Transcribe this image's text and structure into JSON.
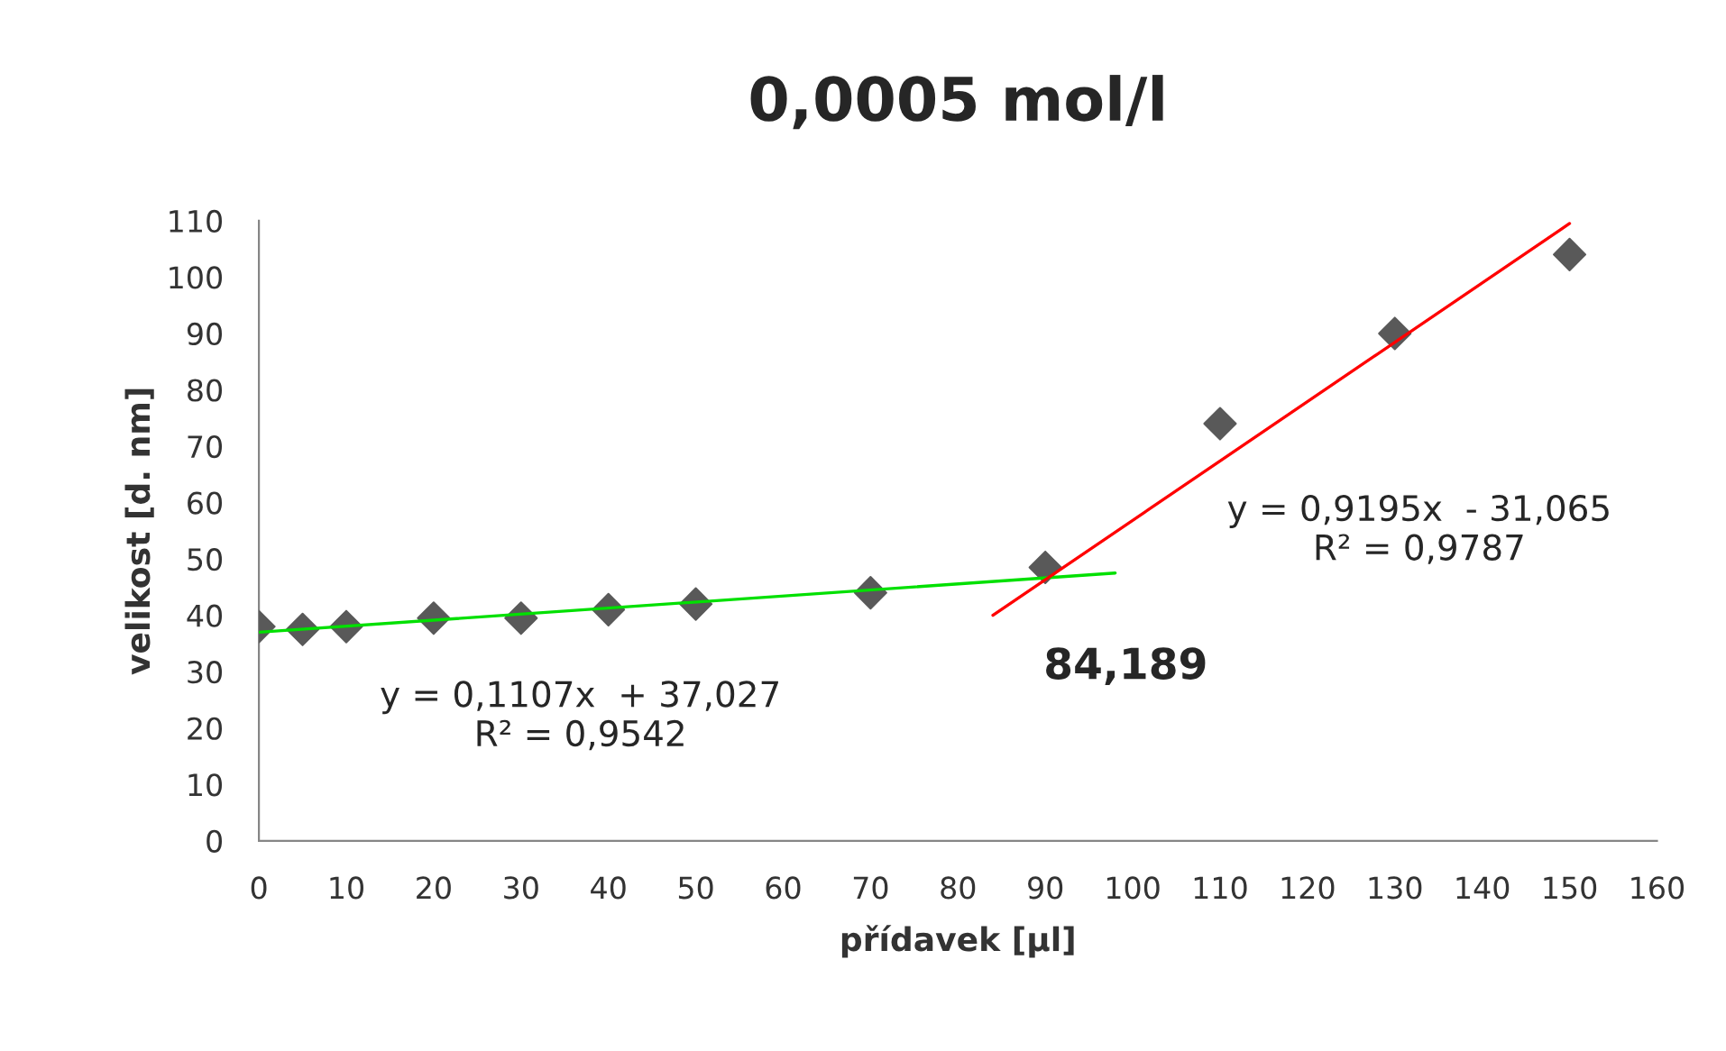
{
  "chart_data": {
    "type": "scatter",
    "title": "0,0005 mol/l",
    "xlabel": "přídavek [µl]",
    "ylabel": "velikost [d. nm]",
    "xlim": [
      0,
      160
    ],
    "xticks": [
      0,
      10,
      20,
      30,
      40,
      50,
      60,
      70,
      80,
      90,
      100,
      110,
      120,
      130,
      140,
      150,
      160
    ],
    "ylim": [
      0,
      110
    ],
    "yticks": [
      0,
      10,
      20,
      30,
      40,
      50,
      60,
      70,
      80,
      90,
      100,
      110
    ],
    "grid": false,
    "legend": false,
    "series": [
      {
        "marker": "diamond",
        "color": "#595959",
        "x": [
          0,
          5,
          10,
          20,
          30,
          40,
          50,
          70,
          90,
          110,
          130,
          150
        ],
        "values": [
          38,
          37.5,
          38,
          39.5,
          39.5,
          41,
          42,
          44,
          48.5,
          74,
          90,
          104
        ]
      },
      {
        "type": "line",
        "marker": "none",
        "color": "#00e000",
        "x": [
          0,
          98
        ],
        "values": [
          37,
          47.5
        ]
      },
      {
        "type": "line",
        "marker": "none",
        "color": "#ff0000",
        "x": [
          84,
          150
        ],
        "values": [
          40,
          109.5
        ]
      }
    ],
    "annotations": [
      "y = 0,1107x  + 37,027\nR² = 0,9542",
      "y = 0,9195x  - 31,065\nR² = 0,9787",
      "84,189"
    ]
  }
}
